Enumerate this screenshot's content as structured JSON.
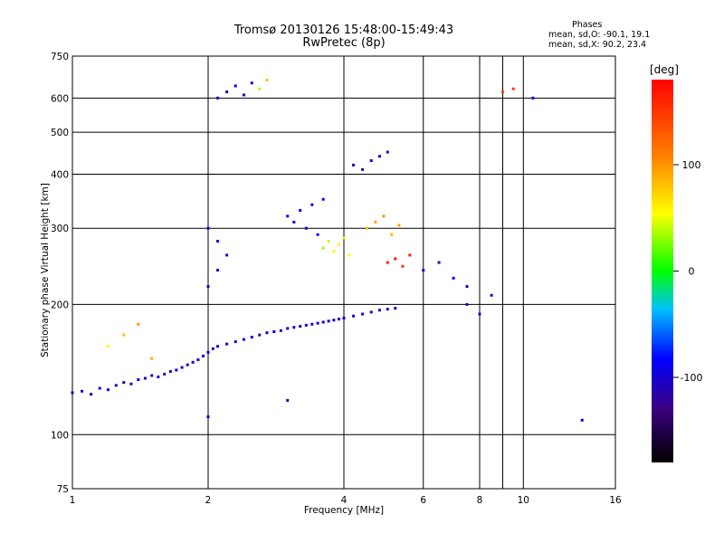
{
  "phases": {
    "title": "Phases",
    "line1": "mean, sd,O: -90.1, 19.1",
    "line2": "mean, sd,X:  90.2, 23.4"
  },
  "chart_data": {
    "type": "scatter",
    "title": "Tromsø 20130126 15:48:00-15:49:43",
    "subtitle": "RwPretec (8p)",
    "xlabel": "Frequency [MHz]",
    "ylabel": "Stationary phase Virtual Height [km]",
    "x_scale": "log",
    "y_scale": "log",
    "xlim": [
      1,
      16
    ],
    "ylim": [
      75,
      750
    ],
    "xticks": [
      1,
      2,
      4,
      6,
      8,
      10,
      16
    ],
    "xtick_labels": [
      "1",
      "2",
      "4",
      "6",
      "8",
      "10",
      "16"
    ],
    "yticks": [
      75,
      100,
      200,
      300,
      400,
      500,
      600,
      750
    ],
    "ytick_labels": [
      "75",
      "100",
      "200",
      "300",
      "400",
      "500",
      "600",
      "750"
    ],
    "grid": true,
    "colorbar": {
      "label": "[deg]",
      "range": [
        -180,
        180
      ],
      "ticks": [
        -100,
        0,
        100
      ],
      "tick_labels": [
        "-100",
        "0",
        "100"
      ]
    },
    "series": [
      {
        "points": [
          [
            1.0,
            125,
            -100
          ],
          [
            1.05,
            126,
            -95
          ],
          [
            1.1,
            124,
            -110
          ],
          [
            1.15,
            128,
            -90
          ],
          [
            1.2,
            127,
            -105
          ],
          [
            1.25,
            130,
            -100
          ],
          [
            1.3,
            132,
            -95
          ],
          [
            1.35,
            131,
            -110
          ],
          [
            1.4,
            134,
            -90
          ],
          [
            1.45,
            135,
            -100
          ],
          [
            1.5,
            137,
            -120
          ],
          [
            1.55,
            136,
            -95
          ],
          [
            1.6,
            138,
            -100
          ],
          [
            1.65,
            140,
            -105
          ],
          [
            1.7,
            141,
            -90
          ],
          [
            1.75,
            143,
            -100
          ],
          [
            1.8,
            145,
            -110
          ],
          [
            1.85,
            147,
            -95
          ],
          [
            1.9,
            149,
            -100
          ],
          [
            1.95,
            152,
            -90
          ],
          [
            2.0,
            155,
            -100
          ],
          [
            2.05,
            158,
            -110
          ],
          [
            2.1,
            160,
            -95
          ],
          [
            2.2,
            162,
            -100
          ],
          [
            2.3,
            164,
            -105
          ],
          [
            2.4,
            166,
            -90
          ],
          [
            2.5,
            168,
            -100
          ],
          [
            2.6,
            170,
            -110
          ],
          [
            2.7,
            172,
            -95
          ],
          [
            2.8,
            173,
            -100
          ],
          [
            2.9,
            174,
            -105
          ],
          [
            3.0,
            176,
            -90
          ],
          [
            3.1,
            177,
            -100
          ],
          [
            3.2,
            178,
            -110
          ],
          [
            3.3,
            179,
            -95
          ],
          [
            3.4,
            180,
            -100
          ],
          [
            3.5,
            181,
            -105
          ],
          [
            3.6,
            182,
            -90
          ],
          [
            3.7,
            183,
            -100
          ],
          [
            3.8,
            184,
            -110
          ],
          [
            3.9,
            185,
            -95
          ],
          [
            4.0,
            186,
            -100
          ],
          [
            4.2,
            188,
            -105
          ],
          [
            4.4,
            190,
            -90
          ],
          [
            4.6,
            192,
            -100
          ],
          [
            4.8,
            194,
            -110
          ],
          [
            5.0,
            195,
            -95
          ],
          [
            5.2,
            196,
            -100
          ],
          [
            2.1,
            600,
            -100
          ],
          [
            2.2,
            620,
            -110
          ],
          [
            2.3,
            640,
            -95
          ],
          [
            2.4,
            610,
            -100
          ],
          [
            2.5,
            650,
            -105
          ],
          [
            2.6,
            630,
            40
          ],
          [
            2.7,
            660,
            80
          ],
          [
            3.0,
            320,
            -100
          ],
          [
            3.1,
            310,
            -110
          ],
          [
            3.2,
            330,
            -95
          ],
          [
            3.3,
            300,
            -100
          ],
          [
            3.4,
            340,
            -105
          ],
          [
            3.5,
            290,
            -90
          ],
          [
            3.6,
            350,
            -100
          ],
          [
            3.6,
            270,
            30
          ],
          [
            3.7,
            280,
            40
          ],
          [
            3.8,
            265,
            50
          ],
          [
            3.9,
            275,
            60
          ],
          [
            4.0,
            285,
            45
          ],
          [
            4.1,
            260,
            55
          ],
          [
            4.2,
            420,
            -100
          ],
          [
            4.4,
            410,
            -110
          ],
          [
            4.6,
            430,
            -95
          ],
          [
            4.8,
            440,
            -100
          ],
          [
            5.0,
            450,
            -105
          ],
          [
            4.5,
            300,
            80
          ],
          [
            4.7,
            310,
            90
          ],
          [
            4.9,
            320,
            100
          ],
          [
            5.1,
            290,
            85
          ],
          [
            5.3,
            305,
            95
          ],
          [
            5.0,
            250,
            160
          ],
          [
            5.2,
            255,
            170
          ],
          [
            5.4,
            245,
            150
          ],
          [
            5.6,
            260,
            165
          ],
          [
            2.0,
            220,
            -110
          ],
          [
            2.1,
            240,
            -100
          ],
          [
            2.2,
            260,
            -95
          ],
          [
            2.1,
            280,
            -105
          ],
          [
            2.0,
            300,
            -100
          ],
          [
            6.0,
            240,
            -100
          ],
          [
            6.5,
            250,
            -110
          ],
          [
            7.0,
            230,
            -95
          ],
          [
            7.5,
            220,
            -100
          ],
          [
            7.5,
            200,
            -110
          ],
          [
            8.0,
            190,
            -100
          ],
          [
            8.5,
            210,
            -95
          ],
          [
            9.0,
            620,
            140
          ],
          [
            9.5,
            630,
            150
          ],
          [
            10.5,
            600,
            -100
          ],
          [
            1.2,
            160,
            60
          ],
          [
            1.3,
            170,
            80
          ],
          [
            1.4,
            180,
            100
          ],
          [
            1.5,
            150,
            90
          ],
          [
            13.5,
            108,
            -100
          ],
          [
            2.0,
            110,
            -100
          ],
          [
            3.0,
            120,
            -100
          ]
        ]
      }
    ]
  }
}
